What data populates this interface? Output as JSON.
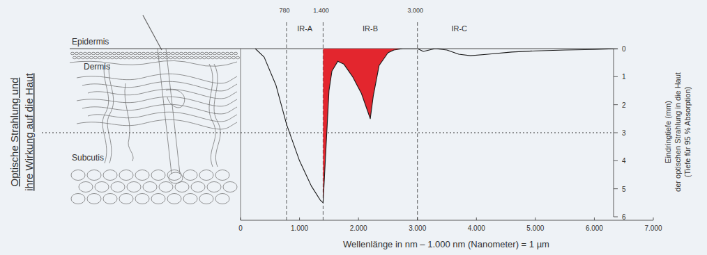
{
  "chart_data": {
    "type": "line",
    "title": [
      "Optische Strahlung und",
      "ihre Wirkung auf die Haut"
    ],
    "x_label": "Wellenlänge in nm  –  1.000 nm (Nanometer) = 1 µm",
    "y_label": [
      "Eindringtiefe (mm)",
      "der optischen Strahlung in die Haut",
      "(Tiefe für 95 % Absorption)"
    ],
    "xlim": [
      0,
      7000
    ],
    "xticks": [
      0,
      {
        "value": 1000,
        "label": "1.000"
      },
      {
        "value": 2000,
        "label": "2.000"
      },
      {
        "value": 3000,
        "label": "3.000"
      },
      {
        "value": 4000,
        "label": "4.000"
      },
      {
        "value": 5000,
        "label": "5.000"
      },
      {
        "value": 6000,
        "label": "6.000"
      },
      {
        "value": 7000,
        "label": "7.000"
      }
    ],
    "ylim": [
      0,
      6
    ],
    "yticks": [
      0,
      1,
      2,
      3,
      4,
      5,
      6
    ],
    "grid": false,
    "series": [
      {
        "type": "line",
        "color": "#1a1a1a",
        "x": [
          250,
          400,
          600,
          780,
          1000,
          1200,
          1350,
          1400,
          1450,
          1500,
          1550,
          1650,
          1750,
          1900,
          2050,
          2150,
          2200,
          2250,
          2350,
          2500,
          2600,
          2750,
          3000,
          3100,
          3300,
          3500,
          3700,
          3900,
          4200,
          4600,
          5000,
          5500,
          6000,
          6400
        ],
        "values": [
          0,
          0.3,
          1.3,
          2.7,
          4.0,
          4.9,
          5.4,
          5.5,
          3.5,
          1.5,
          0.8,
          0.45,
          0.55,
          1.0,
          1.6,
          2.2,
          2.5,
          1.7,
          0.6,
          0.15,
          0.05,
          0,
          0,
          0.1,
          0,
          0.05,
          0.2,
          0.25,
          0.2,
          0.12,
          0.08,
          0.05,
          0.03,
          0
        ]
      },
      {
        "type": "area",
        "color": "#e3262e",
        "x": [
          1400,
          1450,
          1500,
          1550,
          1650,
          1750,
          1900,
          2050,
          2150,
          2200,
          2250,
          2350,
          2500,
          2600,
          2750
        ],
        "values": [
          5.5,
          3.5,
          1.5,
          0.8,
          0.45,
          0.55,
          1.0,
          1.6,
          2.2,
          2.5,
          1.7,
          0.6,
          0.15,
          0.05,
          0
        ]
      }
    ],
    "regions": {
      "bounds": [
        780,
        {
          "value": 1400,
          "label": "1.400"
        },
        {
          "value": 3000,
          "label": "3.000"
        }
      ],
      "labels": [
        "IR-A",
        "IR-B",
        "IR-C"
      ]
    },
    "layers": {
      "labels": [
        "Epidermis",
        "Dermis",
        "Subcutis"
      ],
      "boundaries": [
        0,
        3
      ]
    }
  }
}
